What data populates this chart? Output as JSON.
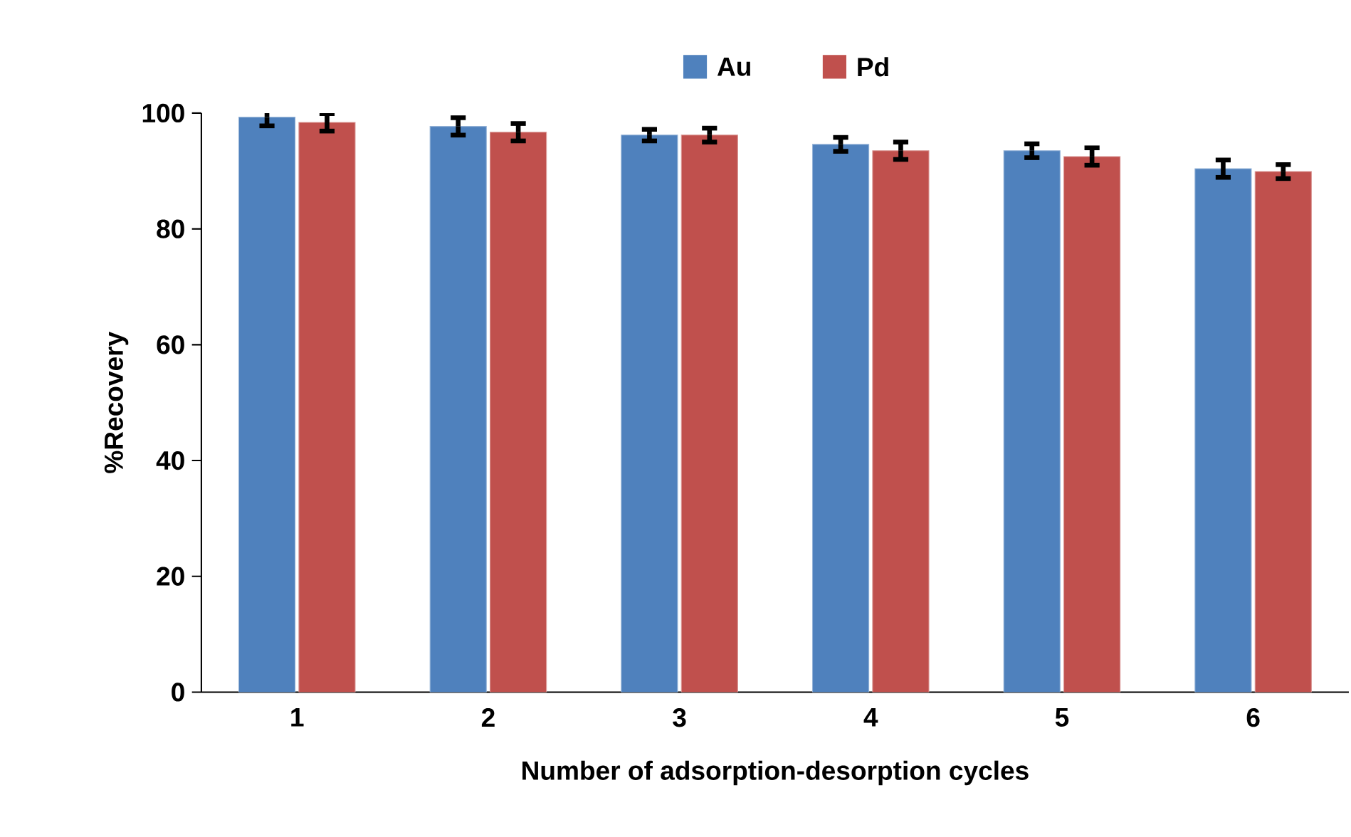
{
  "chart_data": {
    "type": "bar",
    "xlabel": "Number of adsorption-desorption cycles",
    "ylabel": "%Recovery",
    "categories": [
      "1",
      "2",
      "3",
      "4",
      "5",
      "6"
    ],
    "series": [
      {
        "name": "Au",
        "color": "#4f81bd",
        "values": [
          99.3,
          97.7,
          96.2,
          94.6,
          93.5,
          90.4
        ],
        "errors": [
          1.5,
          1.5,
          1,
          1.2,
          1.2,
          1.5
        ]
      },
      {
        "name": "Pd",
        "color": "#c0504d",
        "values": [
          98.4,
          96.7,
          96.2,
          93.5,
          92.5,
          89.9
        ],
        "errors": [
          1.5,
          1.5,
          1.2,
          1.5,
          1.5,
          1.2
        ]
      }
    ],
    "ylim": [
      0,
      100
    ],
    "yticks": [
      0,
      20,
      40,
      60,
      80,
      100
    ],
    "legend": "top",
    "grid": false
  }
}
